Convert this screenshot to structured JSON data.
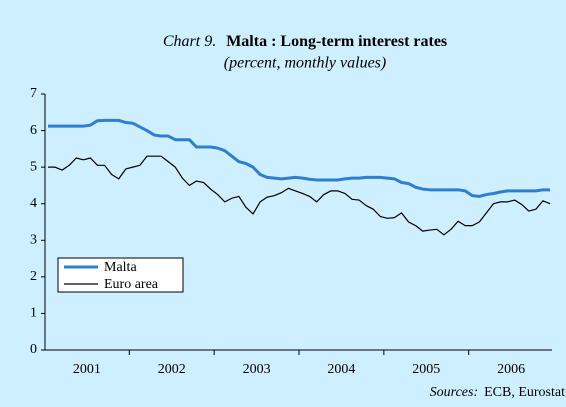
{
  "chart_data": {
    "type": "line",
    "chart_label": "Chart 9.",
    "title": "Malta : Long-term interest rates",
    "subtitle": "(percent, monthly values)",
    "source_label": "Sources:",
    "source": "ECB, Eurostat",
    "categories": [
      null,
      null,
      null,
      null,
      null,
      "2001",
      null,
      null,
      null,
      null,
      null,
      null,
      null,
      null,
      null,
      null,
      null,
      "2002",
      null,
      null,
      null,
      null,
      null,
      null,
      null,
      null,
      null,
      null,
      null,
      "2003",
      null,
      null,
      null,
      null,
      null,
      null,
      null,
      null,
      null,
      null,
      null,
      "2004",
      null,
      null,
      null,
      null,
      null,
      null,
      null,
      null,
      null,
      null,
      null,
      "2005",
      null,
      null,
      null,
      null,
      null,
      null,
      null,
      null,
      null,
      null,
      null,
      "2006",
      null,
      null,
      null,
      null,
      null,
      null
    ],
    "series": [
      {
        "name": "Malta",
        "color": "#2f7fd0",
        "values": [
          6.12,
          6.12,
          6.12,
          6.12,
          6.12,
          6.12,
          6.15,
          6.27,
          6.28,
          6.28,
          6.28,
          6.22,
          6.2,
          6.1,
          6.0,
          5.88,
          5.85,
          5.85,
          5.75,
          5.75,
          5.75,
          5.55,
          5.55,
          5.55,
          5.52,
          5.45,
          5.3,
          5.15,
          5.1,
          5.0,
          4.8,
          4.72,
          4.7,
          4.68,
          4.7,
          4.72,
          4.7,
          4.67,
          4.65,
          4.65,
          4.65,
          4.65,
          4.68,
          4.7,
          4.7,
          4.72,
          4.72,
          4.72,
          4.7,
          4.68,
          4.58,
          4.55,
          4.45,
          4.4,
          4.38,
          4.38,
          4.38,
          4.38,
          4.38,
          4.35,
          4.22,
          4.2,
          4.25,
          4.28,
          4.32,
          4.35,
          4.35,
          4.35,
          4.35,
          4.35,
          4.38,
          4.38
        ]
      },
      {
        "name": "Euro area",
        "color": "#000000",
        "values": [
          5.0,
          5.0,
          4.92,
          5.05,
          5.25,
          5.2,
          5.25,
          5.05,
          5.05,
          4.8,
          4.68,
          4.95,
          5.0,
          5.05,
          5.3,
          5.3,
          5.3,
          5.15,
          5.0,
          4.7,
          4.5,
          4.62,
          4.58,
          4.4,
          4.25,
          4.05,
          4.15,
          4.2,
          3.9,
          3.72,
          4.05,
          4.18,
          4.22,
          4.3,
          4.42,
          4.35,
          4.28,
          4.2,
          4.05,
          4.25,
          4.35,
          4.35,
          4.28,
          4.12,
          4.1,
          3.95,
          3.85,
          3.65,
          3.6,
          3.62,
          3.75,
          3.5,
          3.4,
          3.25,
          3.28,
          3.3,
          3.15,
          3.3,
          3.52,
          3.4,
          3.4,
          3.5,
          3.75,
          4.0,
          4.05,
          4.05,
          4.1,
          3.98,
          3.8,
          3.85,
          4.08,
          4.0
        ]
      }
    ],
    "ylim": [
      0,
      7
    ],
    "yticks": [
      0,
      1,
      2,
      3,
      4,
      5,
      6,
      7
    ],
    "legend": "lower left"
  }
}
